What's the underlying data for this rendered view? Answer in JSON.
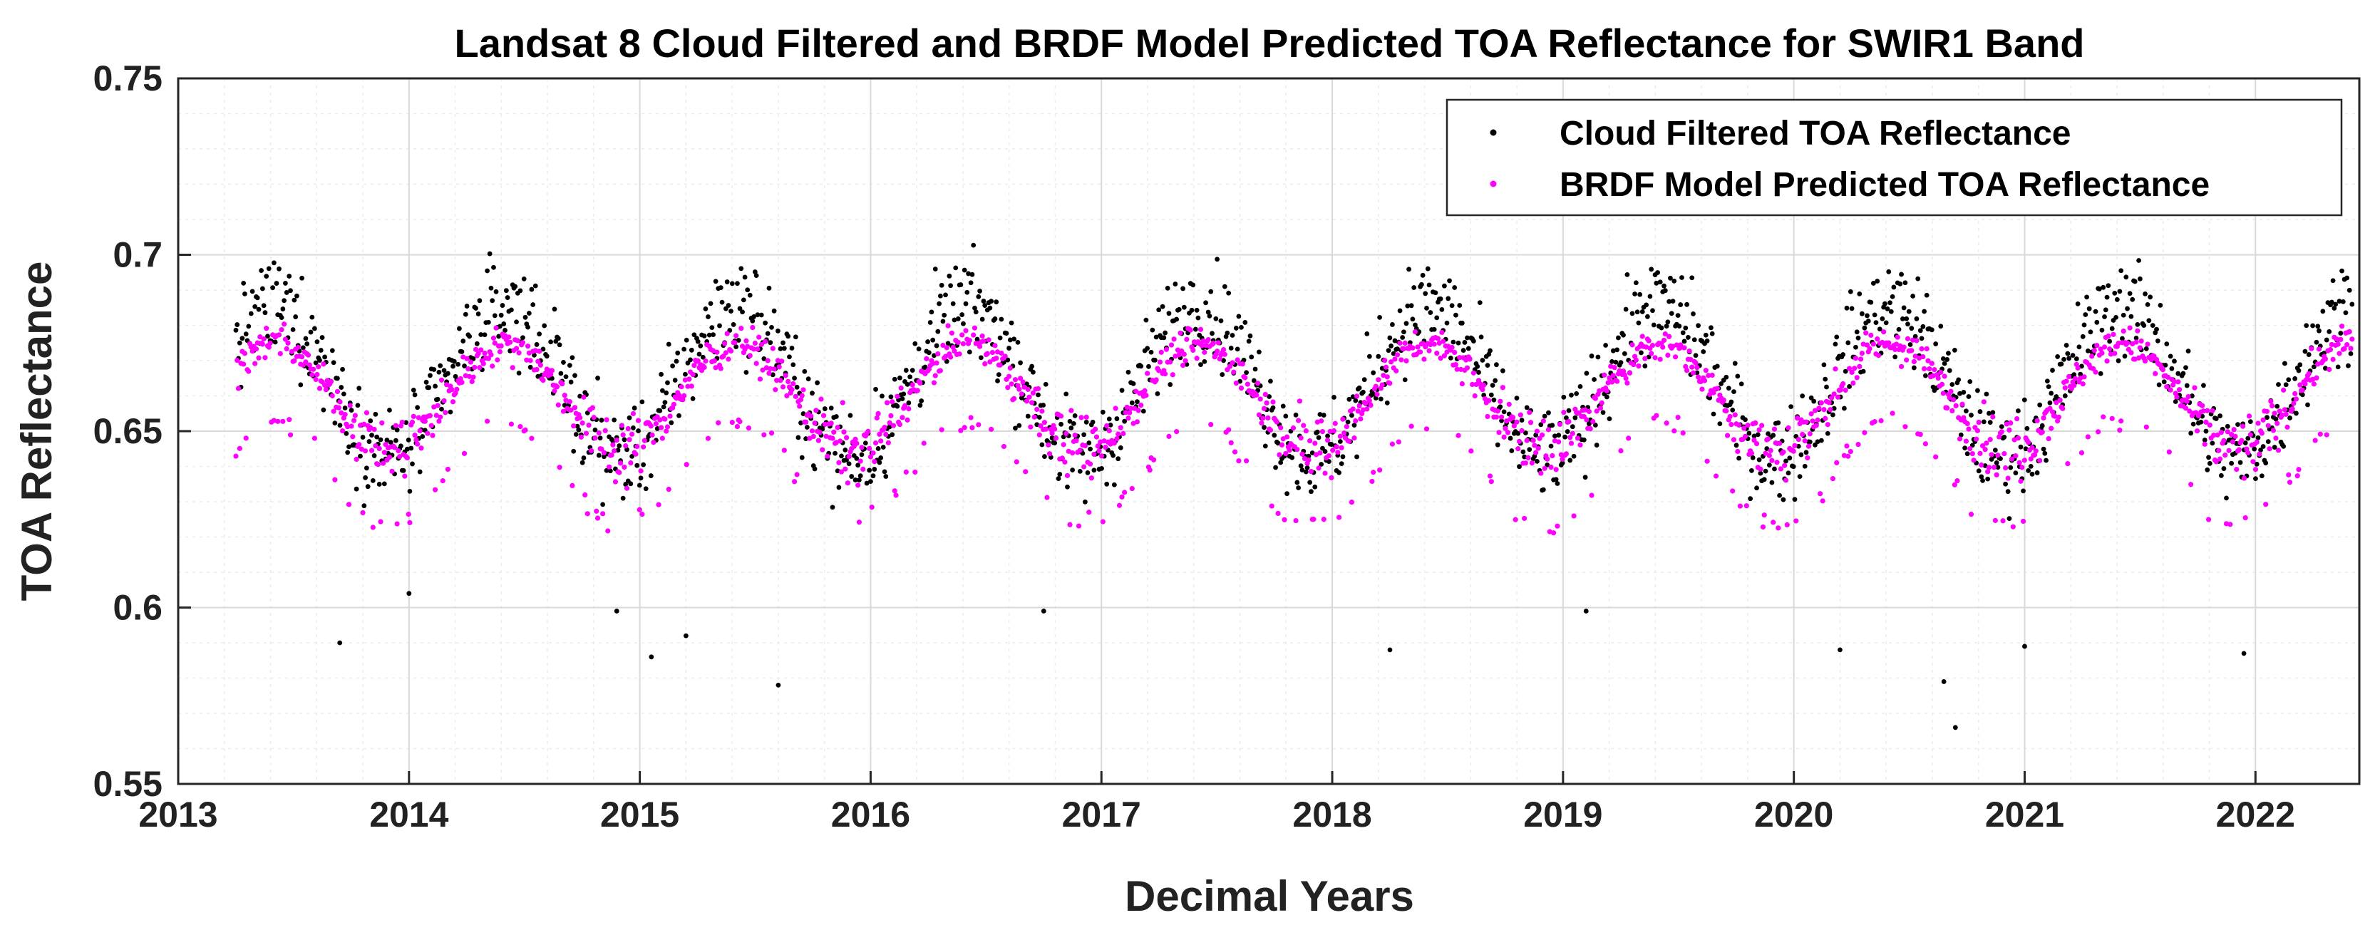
{
  "chart_data": {
    "type": "scatter",
    "title": "Landsat 8 Cloud Filtered and BRDF Model Predicted TOA Reflectance for SWIR1 Band",
    "xlabel": "Decimal Years",
    "ylabel": "TOA Reflectance",
    "xlim": [
      2013,
      2022.45
    ],
    "ylim": [
      0.55,
      0.75
    ],
    "xticks": [
      2013,
      2014,
      2015,
      2016,
      2017,
      2018,
      2019,
      2020,
      2021,
      2022
    ],
    "xtick_labels": [
      "2013",
      "2014",
      "2015",
      "2016",
      "2017",
      "2018",
      "2019",
      "2020",
      "2021",
      "2022"
    ],
    "yticks": [
      0.55,
      0.6,
      0.65,
      0.7,
      0.75
    ],
    "ytick_labels": [
      "0.55",
      "0.6",
      "0.65",
      "0.7",
      "0.75"
    ],
    "grid": true,
    "minor_grid": true,
    "legend_location": "top-right",
    "series": [
      {
        "name": "Cloud Filtered TOA Reflectance",
        "color": "#000000",
        "marker": "dot",
        "x_start": 2013.25,
        "x_end": 2022.42,
        "sample_interval_years": 0.0055,
        "seasonal_model": {
          "mean": 0.664,
          "amplitude": 0.021,
          "peak_phase": 0.42
        },
        "scatter_spread": 0.018,
        "outliers": [
          {
            "x": 2013.7,
            "y": 0.59
          },
          {
            "x": 2014.0,
            "y": 0.604
          },
          {
            "x": 2014.9,
            "y": 0.599
          },
          {
            "x": 2015.05,
            "y": 0.586
          },
          {
            "x": 2015.2,
            "y": 0.592
          },
          {
            "x": 2015.6,
            "y": 0.578
          },
          {
            "x": 2016.75,
            "y": 0.599
          },
          {
            "x": 2018.25,
            "y": 0.588
          },
          {
            "x": 2019.1,
            "y": 0.599
          },
          {
            "x": 2020.2,
            "y": 0.588
          },
          {
            "x": 2020.65,
            "y": 0.579
          },
          {
            "x": 2020.7,
            "y": 0.566
          },
          {
            "x": 2021.0,
            "y": 0.589
          },
          {
            "x": 2021.95,
            "y": 0.587
          }
        ]
      },
      {
        "name": "BRDF Model Predicted TOA Reflectance",
        "color": "#ff00ff",
        "marker": "dot",
        "x_start": 2013.25,
        "x_end": 2022.42,
        "sample_interval_years": 0.0055,
        "seasonal_model": {
          "mean": 0.66,
          "amplitude": 0.015,
          "peak_phase": 0.42
        },
        "scatter_spread": 0.008,
        "secondary_band": {
          "mean": 0.638,
          "amplitude": 0.015,
          "peak_value": 0.654
        }
      }
    ]
  }
}
